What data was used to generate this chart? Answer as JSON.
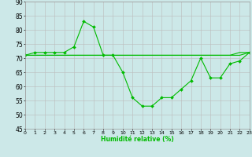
{
  "title": "",
  "xlabel": "Humidité relative (%)",
  "ylabel": "",
  "bg_color": "#cce8e8",
  "grid_color": "#bbbbbb",
  "line_color": "#00bb00",
  "ylim": [
    45,
    90
  ],
  "yticks": [
    45,
    50,
    55,
    60,
    65,
    70,
    75,
    80,
    85,
    90
  ],
  "xlim": [
    0,
    23
  ],
  "xticks": [
    0,
    1,
    2,
    3,
    4,
    5,
    6,
    7,
    8,
    9,
    10,
    11,
    12,
    13,
    14,
    15,
    16,
    17,
    18,
    19,
    20,
    21,
    22,
    23
  ],
  "series": [
    {
      "x": [
        0,
        1,
        2,
        3,
        4,
        5,
        6,
        7,
        8,
        9,
        10,
        11,
        12,
        13,
        14,
        15,
        16,
        17,
        18,
        19,
        20,
        21,
        22,
        23
      ],
      "y": [
        71,
        72,
        72,
        72,
        72,
        74,
        83,
        81,
        71,
        71,
        65,
        56,
        53,
        53,
        56,
        56,
        59,
        62,
        70,
        63,
        63,
        68,
        69,
        72
      ]
    },
    {
      "x": [
        0,
        1,
        2,
        3,
        4,
        5,
        6,
        7,
        8,
        9,
        10,
        11,
        12,
        13,
        14,
        15,
        16,
        17,
        18,
        19,
        20,
        21,
        22,
        23
      ],
      "y": [
        71,
        71,
        71,
        71,
        71,
        71,
        71,
        71,
        71,
        71,
        71,
        71,
        71,
        71,
        71,
        71,
        71,
        71,
        71,
        71,
        71,
        71,
        71,
        72
      ]
    },
    {
      "x": [
        0,
        1,
        2,
        3,
        4,
        5,
        6,
        7,
        8,
        9,
        10,
        11,
        12,
        13,
        14,
        15,
        16,
        17,
        18,
        19,
        20,
        21,
        22,
        23
      ],
      "y": [
        71,
        71,
        71,
        71,
        71,
        71,
        71,
        71,
        71,
        71,
        71,
        71,
        71,
        71,
        71,
        71,
        71,
        71,
        71,
        71,
        71,
        71,
        72,
        72
      ]
    }
  ]
}
